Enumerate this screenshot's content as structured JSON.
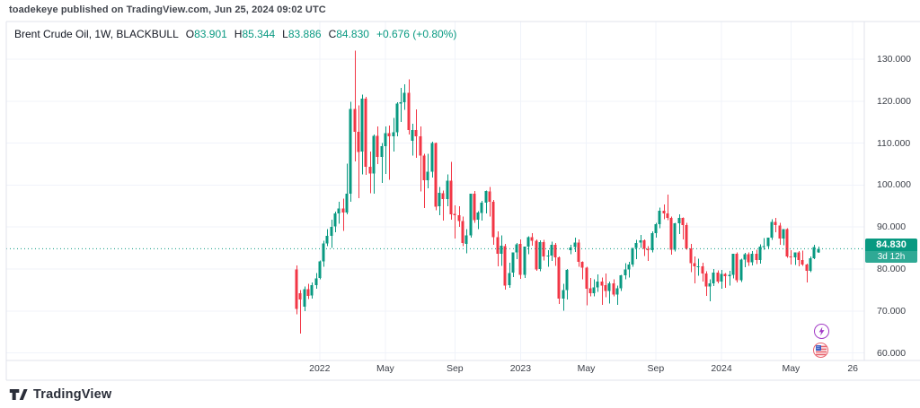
{
  "attribution": "toadekeye published on TradingView.com, Jun 25, 2024 09:02 UTC",
  "legend": {
    "title": "Brent Crude Oil, 1W, BLACKBULL",
    "ohlc": [
      {
        "label": "O",
        "value": "83.901"
      },
      {
        "label": "H",
        "value": "85.344"
      },
      {
        "label": "L",
        "value": "83.886"
      },
      {
        "label": "C",
        "value": "84.830"
      }
    ],
    "change": "+0.676 (+0.80%)"
  },
  "price_scale": {
    "last_price_label": "84.830",
    "countdown": "3d 12h"
  },
  "footer": {
    "logo_text": "TradingView"
  },
  "event_icons": [
    {
      "name": "lightning-event",
      "ring_color": "#a23bc6"
    },
    {
      "name": "us-economic-event",
      "ring_color": "#e8626d"
    }
  ],
  "colors": {
    "up": "#089981",
    "down": "#f23645",
    "grid": "#f0f3fa",
    "border": "#e0e3eb",
    "text": "#131722",
    "axis_text": "#3c4049",
    "accent": "#089981",
    "badge_bg": "#089981"
  },
  "chart_data": {
    "type": "candlestick",
    "title": "Brent Crude Oil, 1W, BLACKBULL",
    "symbol": "Brent Crude Oil",
    "interval": "1W",
    "exchange": "BLACKBULL",
    "grid": true,
    "ylim": [
      57,
      139
    ],
    "last_price": 84.83,
    "y_ticks": [
      {
        "value": 130,
        "label": "130.000"
      },
      {
        "value": 120,
        "label": "120.000"
      },
      {
        "value": 110,
        "label": "110.000"
      },
      {
        "value": 100,
        "label": "100.000"
      },
      {
        "value": 90,
        "label": "90.000"
      },
      {
        "value": 80,
        "label": "80.000"
      },
      {
        "value": 70,
        "label": "70.000"
      },
      {
        "value": 60,
        "label": "60.000"
      }
    ],
    "x_ticks": [
      {
        "index": 6,
        "label": "2022"
      },
      {
        "index": 23,
        "label": "May"
      },
      {
        "index": 41,
        "label": "Sep"
      },
      {
        "index": 58,
        "label": "2023"
      },
      {
        "index": 75,
        "label": "May"
      },
      {
        "index": 93,
        "label": "Sep"
      },
      {
        "index": 110,
        "label": "2024"
      },
      {
        "index": 128,
        "label": "May"
      },
      {
        "index": 144,
        "label": "26"
      }
    ],
    "candles": [
      [
        79.9,
        80.9,
        69.2,
        70.5
      ],
      [
        74.2,
        75.0,
        64.6,
        72.7
      ],
      [
        71.0,
        75.8,
        70.0,
        75.2
      ],
      [
        75.2,
        76.5,
        72.8,
        73.6
      ],
      [
        73.7,
        76.8,
        72.9,
        76.2
      ],
      [
        76.2,
        79.0,
        75.3,
        77.8
      ],
      [
        77.9,
        82.0,
        77.5,
        81.8
      ],
      [
        81.8,
        86.7,
        80.5,
        86.1
      ],
      [
        86.1,
        89.5,
        85.5,
        87.9
      ],
      [
        87.9,
        91.7,
        85.0,
        90.0
      ],
      [
        90.1,
        93.7,
        88.8,
        93.3
      ],
      [
        93.3,
        96.0,
        90.8,
        94.4
      ],
      [
        94.4,
        96.8,
        89.1,
        93.5
      ],
      [
        93.5,
        105.1,
        93.0,
        97.9
      ],
      [
        98.0,
        119.8,
        96.0,
        118.1
      ],
      [
        118.1,
        132.0,
        105.6,
        112.7
      ],
      [
        112.7,
        119.0,
        96.9,
        107.9
      ],
      [
        108.0,
        121.6,
        102.5,
        120.6
      ],
      [
        120.6,
        121.0,
        102.4,
        104.4
      ],
      [
        104.4,
        108.0,
        98.1,
        102.8
      ],
      [
        102.8,
        112.0,
        98.0,
        111.7
      ],
      [
        111.7,
        114.0,
        105.0,
        106.7
      ],
      [
        106.7,
        110.0,
        100.5,
        109.3
      ],
      [
        109.3,
        114.0,
        102.7,
        112.4
      ],
      [
        112.4,
        114.2,
        101.3,
        111.6
      ],
      [
        111.6,
        116.0,
        108.0,
        112.6
      ],
      [
        112.6,
        119.7,
        111.6,
        119.4
      ],
      [
        119.4,
        123.2,
        115.0,
        119.7
      ],
      [
        119.7,
        124.0,
        117.9,
        122.0
      ],
      [
        122.0,
        125.2,
        112.0,
        113.1
      ],
      [
        110.6,
        114.6,
        107.0,
        113.1
      ],
      [
        113.1,
        118.0,
        106.5,
        111.6
      ],
      [
        111.6,
        114.0,
        98.5,
        107.0
      ],
      [
        107.0,
        107.5,
        94.5,
        101.2
      ],
      [
        101.2,
        107.5,
        99.2,
        103.2
      ],
      [
        103.2,
        110.3,
        101.8,
        110.0
      ],
      [
        110.0,
        110.1,
        94.0,
        94.9
      ],
      [
        95.0,
        99.6,
        92.8,
        98.2
      ],
      [
        98.1,
        98.7,
        91.5,
        96.7
      ],
      [
        96.7,
        102.5,
        95.0,
        101.0
      ],
      [
        101.0,
        105.5,
        91.8,
        93.0
      ],
      [
        93.1,
        95.2,
        87.3,
        92.8
      ],
      [
        92.8,
        95.0,
        90.0,
        91.4
      ],
      [
        91.4,
        92.5,
        85.5,
        86.2
      ],
      [
        86.0,
        89.5,
        83.7,
        88.0
      ],
      [
        88.0,
        98.0,
        87.5,
        97.9
      ],
      [
        97.9,
        98.6,
        91.0,
        91.6
      ],
      [
        91.7,
        93.8,
        89.5,
        93.5
      ],
      [
        93.4,
        96.2,
        91.5,
        95.8
      ],
      [
        95.8,
        98.7,
        93.2,
        98.6
      ],
      [
        98.5,
        99.6,
        92.5,
        96.0
      ],
      [
        96.0,
        96.5,
        85.8,
        87.6
      ],
      [
        87.6,
        89.0,
        80.6,
        83.6
      ],
      [
        83.6,
        88.0,
        80.8,
        85.6
      ],
      [
        85.5,
        86.0,
        75.1,
        76.1
      ],
      [
        76.2,
        81.5,
        75.5,
        79.0
      ],
      [
        79.1,
        84.0,
        78.1,
        83.9
      ],
      [
        84.0,
        86.2,
        82.3,
        85.9
      ],
      [
        86.0,
        87.0,
        77.7,
        78.6
      ],
      [
        78.6,
        85.3,
        77.9,
        85.3
      ],
      [
        85.3,
        87.8,
        83.5,
        87.6
      ],
      [
        87.6,
        88.5,
        85.6,
        86.7
      ],
      [
        86.7,
        87.0,
        79.6,
        79.9
      ],
      [
        80.0,
        86.8,
        79.5,
        86.4
      ],
      [
        86.4,
        86.9,
        82.0,
        83.0
      ],
      [
        83.1,
        84.5,
        80.5,
        83.2
      ],
      [
        83.2,
        86.5,
        81.9,
        85.8
      ],
      [
        85.8,
        86.2,
        80.8,
        82.8
      ],
      [
        82.8,
        83.0,
        71.7,
        73.0
      ],
      [
        73.0,
        76.5,
        70.1,
        75.0
      ],
      [
        75.0,
        80.0,
        72.7,
        79.8
      ],
      [
        84.5,
        85.8,
        83.5,
        85.1
      ],
      [
        85.2,
        87.5,
        84.1,
        86.3
      ],
      [
        86.3,
        87.0,
        80.5,
        81.7
      ],
      [
        81.7,
        81.8,
        77.5,
        80.3
      ],
      [
        80.3,
        80.5,
        71.3,
        75.3
      ],
      [
        75.4,
        77.9,
        73.5,
        74.2
      ],
      [
        74.2,
        77.5,
        73.5,
        75.6
      ],
      [
        75.6,
        78.7,
        74.5,
        77.0
      ],
      [
        77.0,
        78.0,
        71.5,
        76.1
      ],
      [
        76.2,
        78.9,
        73.3,
        74.8
      ],
      [
        74.8,
        77.0,
        71.8,
        76.6
      ],
      [
        76.6,
        77.5,
        73.5,
        73.9
      ],
      [
        73.9,
        76.0,
        71.5,
        75.4
      ],
      [
        75.4,
        78.6,
        74.8,
        78.5
      ],
      [
        78.5,
        81.4,
        77.5,
        79.9
      ],
      [
        79.9,
        81.7,
        78.0,
        81.1
      ],
      [
        81.1,
        84.9,
        80.5,
        85.0
      ],
      [
        85.0,
        86.9,
        82.4,
        86.2
      ],
      [
        86.3,
        88.1,
        85.0,
        86.8
      ],
      [
        86.8,
        87.0,
        83.1,
        84.8
      ],
      [
        84.8,
        85.5,
        81.9,
        84.5
      ],
      [
        84.5,
        89.0,
        83.9,
        88.6
      ],
      [
        88.6,
        91.0,
        87.5,
        90.7
      ],
      [
        90.7,
        94.6,
        89.7,
        93.9
      ],
      [
        93.9,
        95.4,
        91.9,
        93.3
      ],
      [
        93.3,
        97.7,
        91.6,
        92.2
      ],
      [
        92.2,
        92.5,
        83.4,
        84.6
      ],
      [
        84.6,
        91.0,
        84.2,
        90.9
      ],
      [
        90.9,
        93.0,
        88.3,
        92.2
      ],
      [
        92.2,
        92.3,
        87.1,
        90.5
      ],
      [
        90.5,
        91.0,
        84.6,
        84.9
      ],
      [
        84.9,
        86.0,
        79.2,
        81.4
      ],
      [
        81.4,
        83.0,
        76.6,
        80.6
      ],
      [
        80.6,
        82.5,
        78.4,
        80.6
      ],
      [
        80.6,
        81.5,
        77.0,
        78.9
      ],
      [
        78.9,
        79.5,
        73.6,
        75.8
      ],
      [
        75.8,
        77.5,
        72.3,
        76.6
      ],
      [
        76.6,
        80.0,
        75.9,
        79.1
      ],
      [
        79.1,
        79.7,
        76.6,
        77.0
      ],
      [
        77.0,
        79.8,
        75.3,
        78.8
      ],
      [
        78.8,
        79.0,
        75.5,
        78.3
      ],
      [
        78.3,
        79.6,
        76.0,
        78.6
      ],
      [
        78.6,
        83.6,
        77.8,
        83.6
      ],
      [
        83.6,
        84.0,
        76.8,
        77.3
      ],
      [
        77.3,
        82.5,
        76.9,
        82.2
      ],
      [
        82.2,
        83.8,
        80.4,
        83.5
      ],
      [
        83.5,
        84.0,
        80.7,
        81.6
      ],
      [
        81.6,
        84.3,
        80.9,
        83.6
      ],
      [
        83.6,
        84.6,
        81.2,
        82.1
      ],
      [
        82.1,
        85.9,
        81.3,
        85.3
      ],
      [
        85.3,
        87.4,
        84.6,
        85.4
      ],
      [
        85.4,
        87.5,
        84.9,
        87.5
      ],
      [
        87.5,
        91.9,
        86.9,
        91.2
      ],
      [
        91.2,
        92.2,
        88.8,
        90.5
      ],
      [
        90.4,
        91.0,
        85.8,
        87.3
      ],
      [
        87.3,
        89.3,
        85.7,
        89.5
      ],
      [
        89.5,
        89.7,
        82.7,
        83.0
      ],
      [
        83.0,
        84.5,
        81.1,
        82.8
      ],
      [
        82.8,
        84.0,
        81.0,
        84.0
      ],
      [
        84.0,
        84.3,
        80.6,
        82.1
      ],
      [
        82.1,
        84.4,
        80.7,
        81.1
      ],
      [
        81.1,
        81.3,
        76.8,
        79.6
      ],
      [
        79.6,
        83.0,
        79.2,
        82.6
      ],
      [
        82.6,
        85.8,
        82.3,
        85.2
      ],
      [
        83.901,
        85.344,
        83.886,
        84.83
      ]
    ]
  }
}
